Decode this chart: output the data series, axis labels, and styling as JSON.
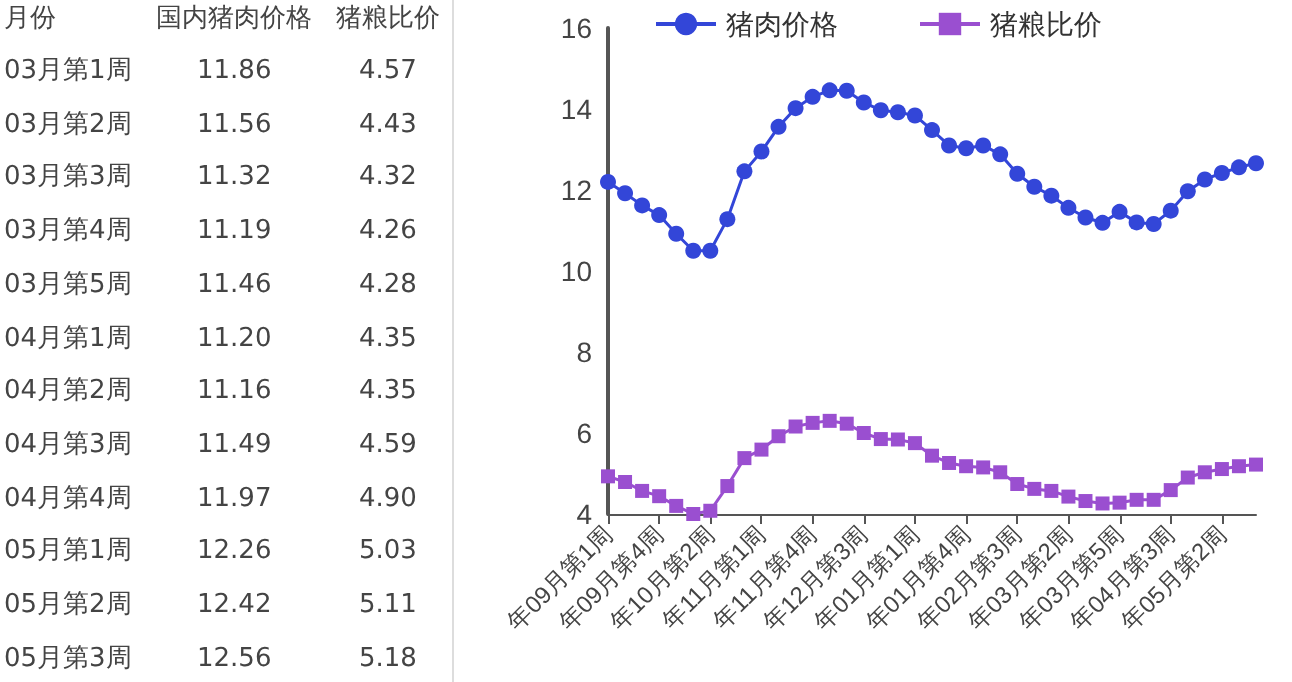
{
  "chart_data": [
    {
      "type": "other",
      "xlabel": "月份",
      "categories": [
        "03月第1周",
        "03月第2周",
        "03月第3周",
        "03月第4周",
        "03月第5周",
        "04月第1周",
        "04月第2周",
        "04月第3周",
        "04月第4周",
        "05月第1周",
        "05月第2周",
        "05月第3周"
      ],
      "series": [
        {
          "name": "国内猪肉价格",
          "values": [
            11.86,
            11.56,
            11.32,
            11.19,
            11.46,
            11.2,
            11.16,
            11.49,
            11.97,
            12.26,
            12.42,
            12.56
          ],
          "value_labels": [
            "11.86",
            "11.56",
            "11.32",
            "11.19",
            "11.46",
            "11.20",
            "11.16",
            "11.49",
            "11.97",
            "12.26",
            "12.42",
            "12.56"
          ]
        },
        {
          "name": "猪粮比价",
          "values": [
            4.57,
            4.43,
            4.32,
            4.26,
            4.28,
            4.35,
            4.35,
            4.59,
            4.9,
            5.03,
            5.11,
            5.18
          ],
          "value_labels": [
            "4.57",
            "4.43",
            "4.32",
            "4.26",
            "4.28",
            "4.35",
            "4.35",
            "4.59",
            "4.90",
            "5.03",
            "5.11",
            "5.18"
          ]
        }
      ]
    },
    {
      "type": "line",
      "categories": [
        "年09月第1周",
        null,
        null,
        "年09月第4周",
        null,
        null,
        "年10月第2周",
        null,
        null,
        "年11月第1周",
        null,
        null,
        "年11月第4周",
        null,
        null,
        "年12月第3周",
        null,
        null,
        "年01月第1周",
        null,
        null,
        "年01月第4周",
        null,
        null,
        "年02月第3周",
        null,
        null,
        "年03月第2周",
        null,
        null,
        "年03月第5周",
        null,
        null,
        "年04月第3周",
        null,
        null,
        "年05月第2周",
        null,
        null
      ],
      "series": [
        {
          "name": "猪肉价格",
          "color": "#3346d8",
          "marker": "circle",
          "values": [
            12.2,
            11.92,
            11.62,
            11.38,
            10.92,
            10.5,
            10.5,
            11.28,
            12.46,
            12.95,
            13.56,
            14.02,
            14.3,
            14.46,
            14.45,
            14.16,
            13.97,
            13.92,
            13.84,
            13.48,
            13.1,
            13.03,
            13.1,
            12.88,
            12.4,
            12.08,
            11.86,
            11.56,
            11.32,
            11.19,
            11.46,
            11.2,
            11.16,
            11.49,
            11.97,
            12.26,
            12.42,
            12.56,
            12.66
          ]
        },
        {
          "name": "猪粮比价",
          "color": "#9a4fd0",
          "marker": "square",
          "values": [
            4.93,
            4.79,
            4.57,
            4.44,
            4.2,
            4.0,
            4.08,
            4.69,
            5.38,
            5.59,
            5.92,
            6.16,
            6.25,
            6.3,
            6.23,
            6.0,
            5.85,
            5.84,
            5.75,
            5.44,
            5.26,
            5.18,
            5.15,
            5.03,
            4.74,
            4.62,
            4.57,
            4.43,
            4.32,
            4.26,
            4.28,
            4.35,
            4.35,
            4.59,
            4.9,
            5.03,
            5.11,
            5.18,
            5.22
          ]
        }
      ],
      "ylim": [
        4,
        16
      ],
      "yticks": [
        4,
        6,
        8,
        10,
        12,
        14,
        16
      ],
      "grid": false,
      "legend": "top"
    }
  ]
}
